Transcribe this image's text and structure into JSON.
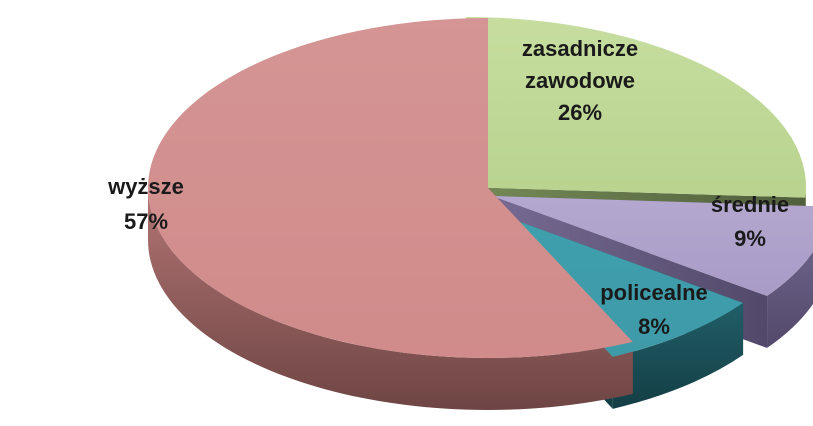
{
  "chart_data": {
    "type": "pie",
    "style": "3d-exploded",
    "title": "",
    "legend": "none",
    "slices": [
      {
        "key": "zasadnicze",
        "label_lines": [
          "zasadnicze",
          "zawodowe"
        ],
        "value": 26,
        "value_label": "26%",
        "color": "#b9d38f"
      },
      {
        "key": "srednie",
        "label_lines": [
          "średnie"
        ],
        "value": 9,
        "value_label": "9%",
        "color": "#a89bc6"
      },
      {
        "key": "policealne",
        "label_lines": [
          "policealne"
        ],
        "value": 8,
        "value_label": "8%",
        "color": "#3f9aa8"
      },
      {
        "key": "wyzsze",
        "label_lines": [
          "wyższe"
        ],
        "value": 57,
        "value_label": "57%",
        "color": "#d08b8a"
      }
    ]
  }
}
